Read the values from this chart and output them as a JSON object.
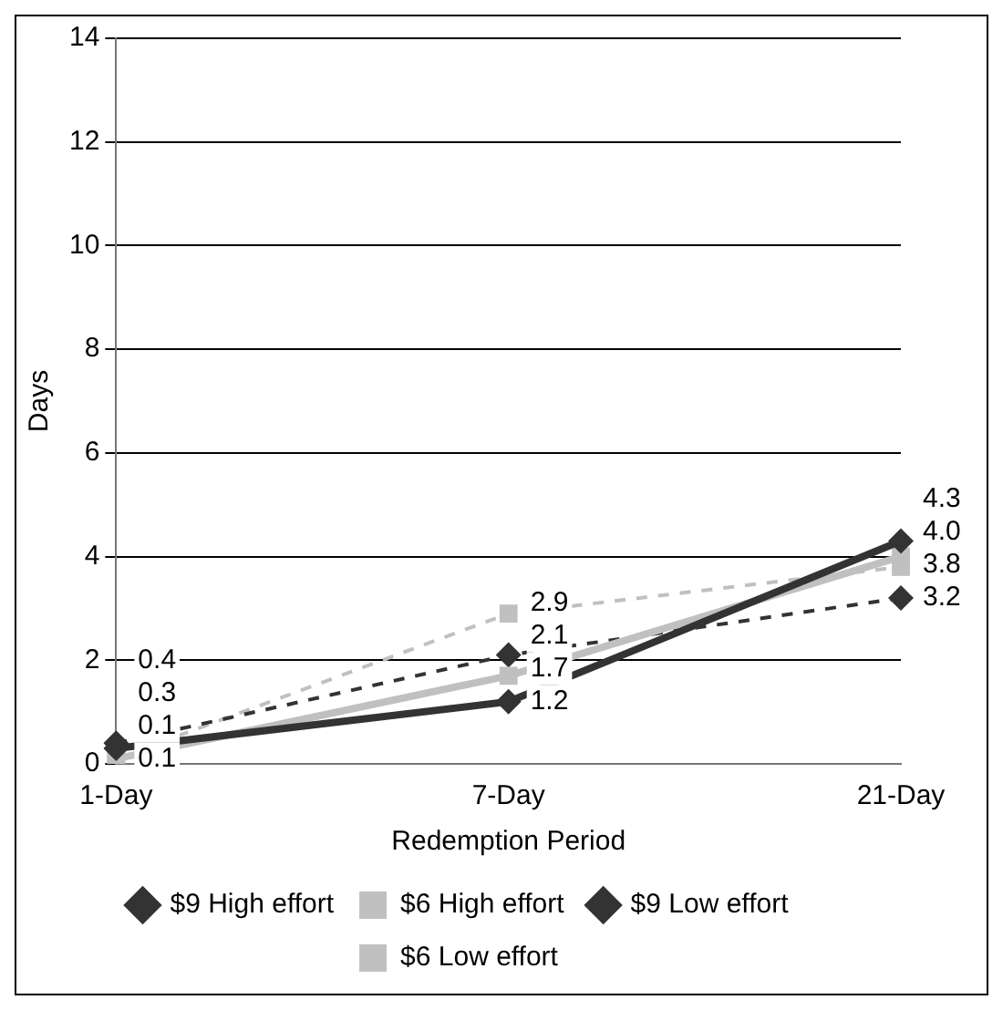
{
  "chart_data": {
    "type": "line",
    "xlabel": "Redemption Period",
    "ylabel": "Days",
    "categories": [
      "1-Day",
      "7-Day",
      "21-Day"
    ],
    "ylim": [
      0,
      14
    ],
    "yticks": [
      0,
      2,
      4,
      6,
      8,
      10,
      12,
      14
    ],
    "grid": "y",
    "legend": "bottom",
    "series": [
      {
        "name": "$9 High effort",
        "color": "#333333",
        "values": [
          0.3,
          1.2,
          4.3
        ],
        "value_labels": [
          "0.3",
          "1.2",
          "4.3"
        ],
        "marker": "diamond",
        "line_style": "solid"
      },
      {
        "name": "$6 High effort",
        "color": "#c0c0c0",
        "values": [
          0.1,
          1.7,
          4.0
        ],
        "value_labels": [
          "0.1",
          "1.7",
          "4.0"
        ],
        "marker": "square",
        "line_style": "solid"
      },
      {
        "name": "$9 Low effort",
        "color": "#333333",
        "values": [
          0.4,
          2.1,
          3.2
        ],
        "value_labels": [
          "0.4",
          "2.1",
          "3.2"
        ],
        "marker": "diamond",
        "line_style": "dashed"
      },
      {
        "name": "$6 Low effort",
        "color": "#c0c0c0",
        "values": [
          0.1,
          2.9,
          3.8
        ],
        "value_labels": [
          "0.1",
          "2.9",
          "3.8"
        ],
        "marker": "square",
        "line_style": "dashed"
      }
    ]
  }
}
